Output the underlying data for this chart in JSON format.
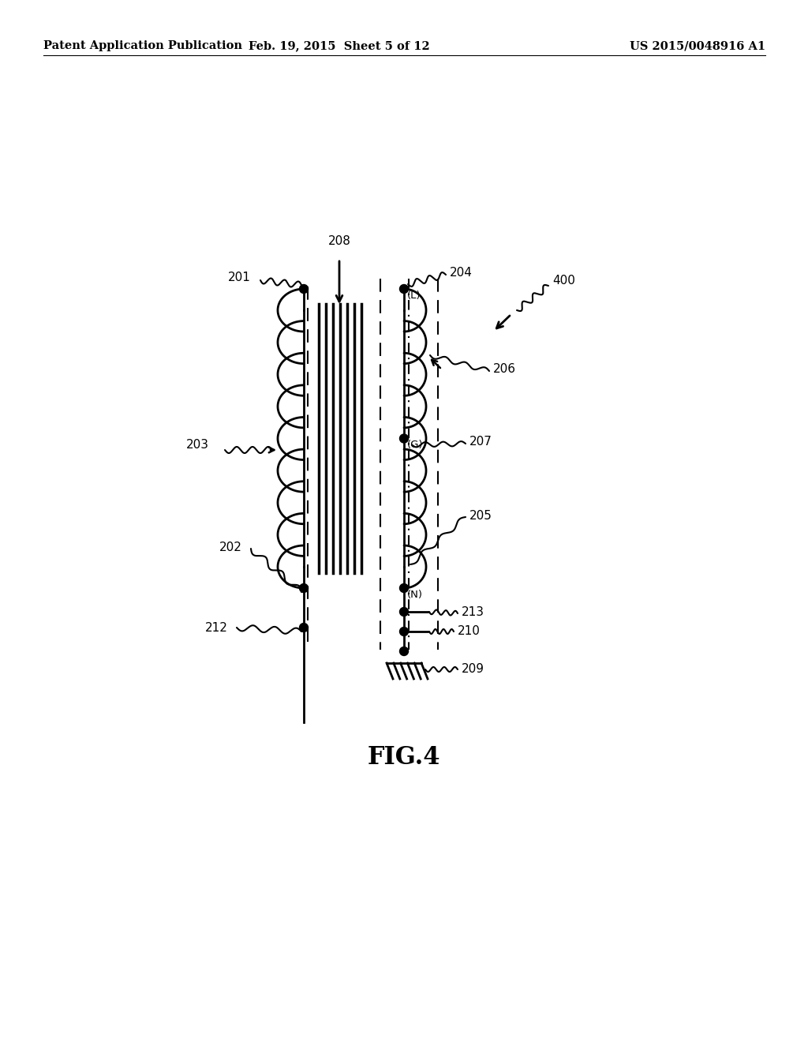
{
  "title": "FIG.4",
  "header_left": "Patent Application Publication",
  "header_mid": "Feb. 19, 2015  Sheet 5 of 12",
  "header_right": "US 2015/0048916 A1",
  "bg_color": "#ffffff",
  "fg_color": "#000000",
  "fig_width": 10.24,
  "fig_height": 13.2,
  "dpi": 100
}
